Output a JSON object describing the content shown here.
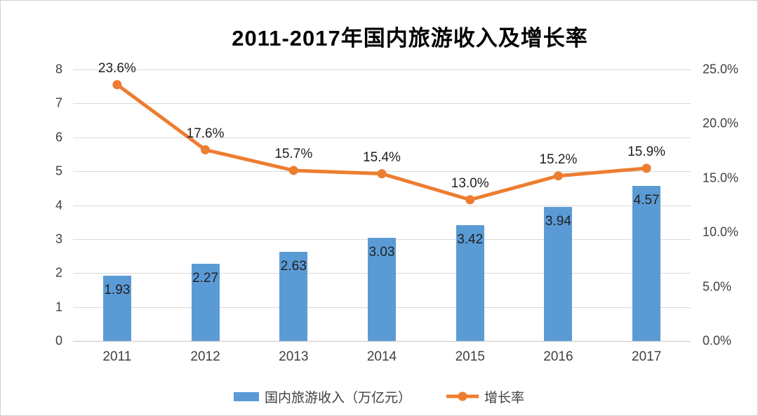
{
  "chart_data": {
    "type": "combo",
    "title": "2011-2017年国内旅游收入及增长率",
    "categories": [
      "2011",
      "2012",
      "2013",
      "2014",
      "2015",
      "2016",
      "2017"
    ],
    "series": [
      {
        "name": "国内旅游收入（万亿元）",
        "type": "bar",
        "axis": "left",
        "color": "#5B9BD5",
        "values": [
          1.93,
          2.27,
          2.63,
          3.03,
          3.42,
          3.94,
          4.57
        ],
        "labels": [
          "1.93",
          "2.27",
          "2.63",
          "3.03",
          "3.42",
          "3.94",
          "4.57"
        ]
      },
      {
        "name": "增长率",
        "type": "line",
        "axis": "right",
        "color": "#ED7D31",
        "values": [
          23.6,
          17.6,
          15.7,
          15.4,
          13.0,
          15.2,
          15.9
        ],
        "labels": [
          "23.6%",
          "17.6%",
          "15.7%",
          "15.4%",
          "13.0%",
          "15.2%",
          "15.9%"
        ]
      }
    ],
    "left_axis": {
      "min": 0,
      "max": 8,
      "step": 1,
      "ticks": [
        "0",
        "1",
        "2",
        "3",
        "4",
        "5",
        "6",
        "7",
        "8"
      ]
    },
    "right_axis": {
      "min": 0,
      "max": 25,
      "step": 5,
      "ticks": [
        "0.0%",
        "5.0%",
        "10.0%",
        "15.0%",
        "20.0%",
        "25.0%"
      ]
    },
    "grid": true,
    "legend_position": "bottom",
    "colors": {
      "bar": "#5B9BD5",
      "line": "#ED7D31",
      "gridline": "#D9D9D9",
      "axis_text": "#404040",
      "data_label_text": "#1F1F1F",
      "title_text": "#000000",
      "background": "#FFFFFF"
    }
  }
}
